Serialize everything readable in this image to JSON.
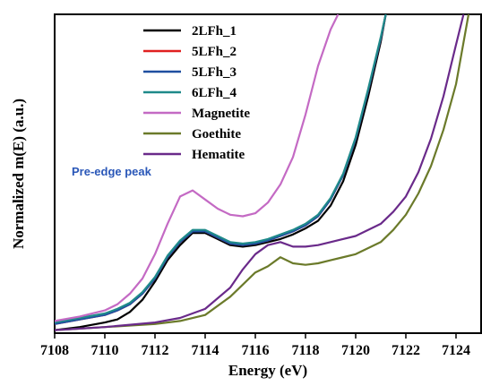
{
  "chart_data": {
    "type": "line",
    "xlabel": "Energy (eV)",
    "ylabel": "Normalized m(E) (a.u.)",
    "xlim": [
      7108,
      7125
    ],
    "ylim": [
      0,
      1.05
    ],
    "x_ticks": [
      7108,
      7110,
      7112,
      7114,
      7116,
      7118,
      7120,
      7122,
      7124
    ],
    "annotation": {
      "text": "Pre-edge peak",
      "color": "#2a57b8"
    },
    "legend": {
      "position": "top-left"
    },
    "series": [
      {
        "name": "2LFh_1",
        "color": "#000000",
        "x": [
          7108,
          7109,
          7110,
          7110.5,
          7111,
          7111.5,
          7112,
          7112.5,
          7113,
          7113.5,
          7114,
          7114.5,
          7115,
          7115.5,
          7116,
          7116.5,
          7117,
          7117.5,
          7118,
          7118.5,
          7119,
          7119.5,
          7120,
          7120.5,
          7121,
          7121.2
        ],
        "y": [
          0.01,
          0.02,
          0.035,
          0.045,
          0.07,
          0.11,
          0.17,
          0.24,
          0.29,
          0.33,
          0.33,
          0.31,
          0.29,
          0.285,
          0.29,
          0.3,
          0.31,
          0.325,
          0.345,
          0.37,
          0.42,
          0.5,
          0.62,
          0.78,
          0.96,
          1.05
        ]
      },
      {
        "name": "5LFh_2",
        "color": "#e02020",
        "x": [
          7108,
          7109,
          7110,
          7110.5,
          7111,
          7111.5,
          7112,
          7112.5,
          7113,
          7113.5,
          7114,
          7114.5,
          7115,
          7115.5,
          7116,
          7116.5,
          7117,
          7117.5,
          7118,
          7118.5,
          7119,
          7119.5,
          7120,
          7120.5,
          7121,
          7121.2
        ],
        "y": [
          0.03,
          0.045,
          0.06,
          0.075,
          0.095,
          0.13,
          0.18,
          0.25,
          0.3,
          0.335,
          0.335,
          0.315,
          0.295,
          0.29,
          0.295,
          0.305,
          0.32,
          0.335,
          0.355,
          0.385,
          0.44,
          0.52,
          0.64,
          0.8,
          0.97,
          1.05
        ]
      },
      {
        "name": "5LFh_3",
        "color": "#1f4fa0",
        "x": [
          7108,
          7109,
          7110,
          7110.5,
          7111,
          7111.5,
          7112,
          7112.5,
          7113,
          7113.5,
          7114,
          7114.5,
          7115,
          7115.5,
          7116,
          7116.5,
          7117,
          7117.5,
          7118,
          7118.5,
          7119,
          7119.5,
          7120,
          7120.5,
          7121,
          7121.2
        ],
        "y": [
          0.03,
          0.045,
          0.06,
          0.075,
          0.095,
          0.13,
          0.18,
          0.25,
          0.3,
          0.335,
          0.335,
          0.315,
          0.295,
          0.29,
          0.295,
          0.305,
          0.32,
          0.335,
          0.355,
          0.385,
          0.44,
          0.52,
          0.64,
          0.8,
          0.97,
          1.05
        ]
      },
      {
        "name": "6LFh_4",
        "color": "#1f8a8a",
        "x": [
          7108,
          7109,
          7110,
          7110.5,
          7111,
          7111.5,
          7112,
          7112.5,
          7113,
          7113.5,
          7114,
          7114.5,
          7115,
          7115.5,
          7116,
          7116.5,
          7117,
          7117.5,
          7118,
          7118.5,
          7119,
          7119.5,
          7120,
          7120.5,
          7121,
          7121.2
        ],
        "y": [
          0.035,
          0.05,
          0.065,
          0.08,
          0.1,
          0.135,
          0.185,
          0.255,
          0.305,
          0.34,
          0.34,
          0.32,
          0.3,
          0.295,
          0.3,
          0.31,
          0.325,
          0.34,
          0.36,
          0.39,
          0.445,
          0.525,
          0.645,
          0.805,
          0.975,
          1.05
        ]
      },
      {
        "name": "Magnetite",
        "color": "#c46ac4",
        "x": [
          7108,
          7109,
          7110,
          7110.5,
          7111,
          7111.5,
          7112,
          7112.5,
          7113,
          7113.5,
          7114,
          7114.5,
          7115,
          7115.5,
          7116,
          7116.5,
          7117,
          7117.5,
          7118,
          7118.5,
          7119,
          7119.3
        ],
        "y": [
          0.04,
          0.055,
          0.075,
          0.095,
          0.13,
          0.18,
          0.26,
          0.36,
          0.45,
          0.47,
          0.44,
          0.41,
          0.39,
          0.385,
          0.395,
          0.43,
          0.49,
          0.58,
          0.72,
          0.88,
          1.0,
          1.05
        ]
      },
      {
        "name": "Goethite",
        "color": "#6b7a2a",
        "x": [
          7108,
          7110,
          7112,
          7113,
          7114,
          7115,
          7115.5,
          7116,
          7116.5,
          7117,
          7117.5,
          7118,
          7118.5,
          7119,
          7120,
          7121,
          7121.5,
          7122,
          7122.5,
          7123,
          7123.5,
          7124,
          7124.5
        ],
        "y": [
          0.01,
          0.02,
          0.03,
          0.04,
          0.06,
          0.12,
          0.16,
          0.2,
          0.22,
          0.25,
          0.23,
          0.225,
          0.23,
          0.24,
          0.26,
          0.3,
          0.34,
          0.39,
          0.46,
          0.55,
          0.67,
          0.82,
          1.05
        ]
      },
      {
        "name": "Hematite",
        "color": "#6a2a8a",
        "x": [
          7108,
          7110,
          7112,
          7113,
          7114,
          7115,
          7115.5,
          7116,
          7116.5,
          7117,
          7117.5,
          7118,
          7118.5,
          7119,
          7120,
          7121,
          7121.5,
          7122,
          7122.5,
          7123,
          7123.5,
          7124,
          7124.3
        ],
        "y": [
          0.01,
          0.02,
          0.035,
          0.05,
          0.08,
          0.15,
          0.21,
          0.26,
          0.29,
          0.3,
          0.285,
          0.285,
          0.29,
          0.3,
          0.32,
          0.36,
          0.4,
          0.45,
          0.53,
          0.64,
          0.78,
          0.95,
          1.05
        ]
      }
    ]
  }
}
